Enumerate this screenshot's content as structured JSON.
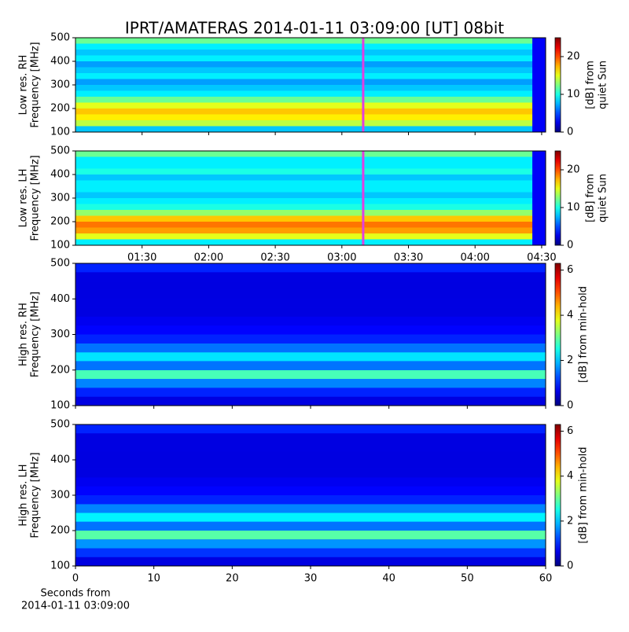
{
  "title": "IPRT/AMATERAS 2014-01-11 03:09:00 [UT]   08bit",
  "chart_data": [
    {
      "type": "heatmap",
      "ylabel": [
        "Low res. RH",
        "Frequency [MHz]"
      ],
      "colorbar_label": [
        "[dB] from",
        "quiet Sun"
      ],
      "colormap": "jet",
      "clim": [
        0,
        25
      ],
      "cticks": [
        0,
        10,
        20
      ],
      "ylim": [
        100,
        500
      ],
      "yticks": [
        100,
        200,
        300,
        400,
        500
      ],
      "xlim": [
        1.0,
        4.53
      ],
      "data_x": [
        1.0,
        4.43
      ],
      "y_bins": [
        100,
        125,
        150,
        175,
        200,
        225,
        250,
        275,
        300,
        325,
        350,
        375,
        400,
        425,
        450,
        475,
        500
      ],
      "values": [
        8,
        14,
        16,
        17,
        15,
        12,
        9,
        8,
        7,
        9,
        8,
        7,
        9,
        8,
        9,
        12
      ],
      "marker": 3.16,
      "marker_color": "#e040e0"
    },
    {
      "type": "heatmap",
      "ylabel": [
        "Low res. LH",
        "Frequency [MHz]"
      ],
      "colorbar_label": [
        "[dB] from",
        "quiet Sun"
      ],
      "colormap": "jet",
      "clim": [
        0,
        25
      ],
      "cticks": [
        0,
        10,
        20
      ],
      "ylim": [
        100,
        500
      ],
      "yticks": [
        100,
        200,
        300,
        400,
        500
      ],
      "xlim": [
        1.0,
        4.53
      ],
      "data_x": [
        1.0,
        4.43
      ],
      "xticks": [
        {
          "value": 1.5,
          "label": "01:30"
        },
        {
          "value": 2.0,
          "label": "02:00"
        },
        {
          "value": 2.5,
          "label": "02:30"
        },
        {
          "value": 3.0,
          "label": "03:00"
        },
        {
          "value": 3.5,
          "label": "03:30"
        },
        {
          "value": 4.0,
          "label": "04:00"
        },
        {
          "value": 4.5,
          "label": "04:30"
        }
      ],
      "y_bins": [
        100,
        125,
        150,
        175,
        200,
        225,
        250,
        275,
        300,
        325,
        350,
        375,
        400,
        425,
        450,
        475,
        500
      ],
      "values": [
        9,
        15,
        18,
        19,
        17,
        13,
        10,
        9,
        8,
        9,
        9,
        8,
        10,
        9,
        9,
        12
      ],
      "marker": 3.16,
      "marker_color": "#e040e0"
    },
    {
      "type": "heatmap",
      "ylabel": [
        "High res. RH",
        "Frequency [MHz]"
      ],
      "colorbar_label": [
        "[dB] from min-hold"
      ],
      "colormap": "jet",
      "clim": [
        0,
        6.3
      ],
      "cticks": [
        0,
        2,
        4,
        6
      ],
      "ylim": [
        100,
        500
      ],
      "yticks": [
        100,
        200,
        300,
        400,
        500
      ],
      "xlim": [
        0,
        60
      ],
      "data_x": [
        0,
        60
      ],
      "y_bins": [
        100,
        125,
        150,
        175,
        200,
        225,
        250,
        275,
        300,
        325,
        350,
        375,
        400,
        425,
        450,
        475,
        500
      ],
      "values": [
        0.6,
        1.0,
        1.6,
        2.8,
        1.5,
        2.2,
        1.5,
        1.0,
        0.8,
        0.7,
        0.6,
        0.6,
        0.6,
        0.6,
        0.6,
        1.0
      ]
    },
    {
      "type": "heatmap",
      "ylabel": [
        "High res. LH",
        "Frequency [MHz]"
      ],
      "colorbar_label": [
        "[dB] from min-hold"
      ],
      "colormap": "jet",
      "clim": [
        0,
        6.3
      ],
      "cticks": [
        0,
        2,
        4,
        6
      ],
      "ylim": [
        100,
        500
      ],
      "yticks": [
        100,
        200,
        300,
        400,
        500
      ],
      "xlim": [
        0,
        60
      ],
      "data_x": [
        0,
        60
      ],
      "xticks": [
        0,
        10,
        20,
        30,
        40,
        50,
        60
      ],
      "xlabel": [
        "Seconds from",
        "2014-01-11 03:09:00"
      ],
      "y_bins": [
        100,
        125,
        150,
        175,
        200,
        225,
        250,
        275,
        300,
        325,
        350,
        375,
        400,
        425,
        450,
        475,
        500
      ],
      "values": [
        0.6,
        1.1,
        1.7,
        2.9,
        1.5,
        2.3,
        1.6,
        1.0,
        0.8,
        0.7,
        0.6,
        0.6,
        0.6,
        0.6,
        0.6,
        1.0
      ]
    }
  ]
}
